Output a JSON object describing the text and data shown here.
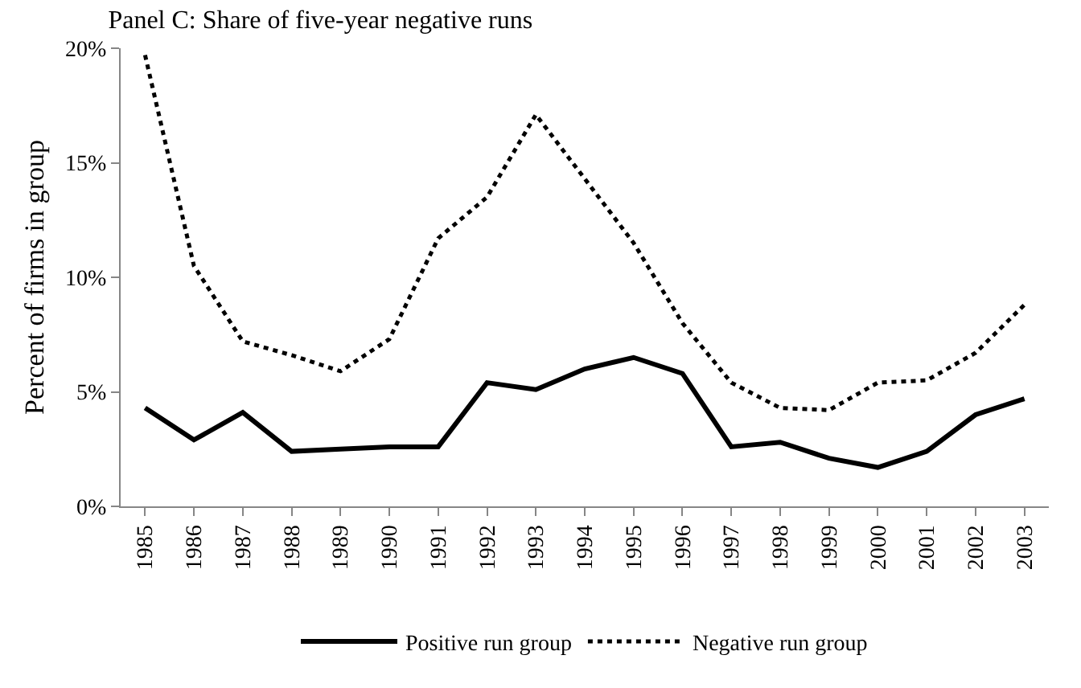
{
  "chart_data": {
    "type": "line",
    "title": "Panel C: Share of five-year negative runs",
    "ylabel": "Percent of firms in group",
    "categories": [
      "1985",
      "1986",
      "1987",
      "1988",
      "1989",
      "1990",
      "1991",
      "1992",
      "1993",
      "1994",
      "1995",
      "1996",
      "1997",
      "1998",
      "1999",
      "2000",
      "2001",
      "2002",
      "2003"
    ],
    "series": [
      {
        "name": "Positive run group",
        "color": "#000000",
        "line_style": "solid",
        "values": [
          4.3,
          2.9,
          4.1,
          2.4,
          2.5,
          2.6,
          2.6,
          5.4,
          5.1,
          6.0,
          6.5,
          5.8,
          2.6,
          2.8,
          2.1,
          1.7,
          2.4,
          4.0,
          4.7
        ]
      },
      {
        "name": "Negative run group",
        "color": "#000000",
        "line_style": "dotted",
        "values": [
          19.7,
          10.5,
          7.2,
          6.6,
          5.9,
          7.3,
          11.7,
          13.5,
          17.1,
          14.3,
          11.5,
          8.0,
          5.4,
          4.3,
          4.2,
          5.4,
          5.5,
          6.7,
          8.8
        ]
      }
    ],
    "ylim": [
      0,
      20
    ],
    "yticks": [
      {
        "value": 0,
        "label": "0%"
      },
      {
        "value": 5,
        "label": "5%"
      },
      {
        "value": 10,
        "label": "10%"
      },
      {
        "value": 15,
        "label": "15%"
      },
      {
        "value": 20,
        "label": "20%"
      }
    ],
    "grid": false,
    "legend": "bottom",
    "marker": "none"
  }
}
